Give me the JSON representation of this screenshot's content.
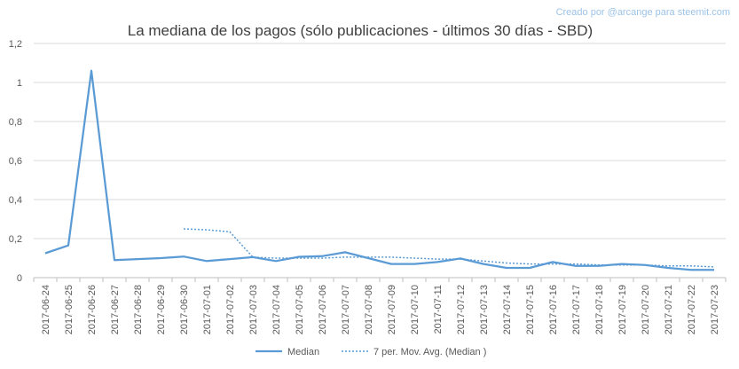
{
  "credit": "Creado por @arcange para steemit.com",
  "chart_data": {
    "type": "line",
    "title": "La mediana de los pagos (sólo publicaciones - últimos 30 días - SBD)",
    "xlabel": "",
    "ylabel": "",
    "ylim": [
      0,
      1.2
    ],
    "yticks": [
      "0",
      "0,2",
      "0,4",
      "0,6",
      "0,8",
      "1",
      "1,2"
    ],
    "grid": true,
    "legend_position": "bottom",
    "categories": [
      "2017-06-24",
      "2017-06-25",
      "2017-06-26",
      "2017-06-27",
      "2017-06-28",
      "2017-06-29",
      "2017-06-30",
      "2017-07-01",
      "2017-07-02",
      "2017-07-03",
      "2017-07-04",
      "2017-07-05",
      "2017-07-06",
      "2017-07-07",
      "2017-07-08",
      "2017-07-09",
      "2017-07-10",
      "2017-07-11",
      "2017-07-12",
      "2017-07-13",
      "2017-07-14",
      "2017-07-15",
      "2017-07-16",
      "2017-07-17",
      "2017-07-18",
      "2017-07-19",
      "2017-07-20",
      "2017-07-21",
      "2017-07-22",
      "2017-07-23"
    ],
    "series": [
      {
        "name": "Median",
        "style": "solid",
        "color": "#5b9bd5",
        "values": [
          0.125,
          0.165,
          1.06,
          0.09,
          0.095,
          0.1,
          0.108,
          0.085,
          0.095,
          0.105,
          0.085,
          0.107,
          0.11,
          0.13,
          0.1,
          0.07,
          0.07,
          0.08,
          0.098,
          0.07,
          0.05,
          0.05,
          0.08,
          0.06,
          0.06,
          0.07,
          0.065,
          0.05,
          0.04,
          0.04
        ]
      },
      {
        "name": "7 per. Mov. Avg. (Median )",
        "style": "dotted",
        "color": "#5b9bd5",
        "values": [
          null,
          null,
          null,
          null,
          null,
          null,
          0.25,
          0.245,
          0.235,
          0.105,
          0.1,
          0.1,
          0.1,
          0.105,
          0.105,
          0.105,
          0.1,
          0.095,
          0.095,
          0.085,
          0.075,
          0.07,
          0.07,
          0.07,
          0.065,
          0.065,
          0.065,
          0.06,
          0.06,
          0.055
        ]
      }
    ]
  }
}
